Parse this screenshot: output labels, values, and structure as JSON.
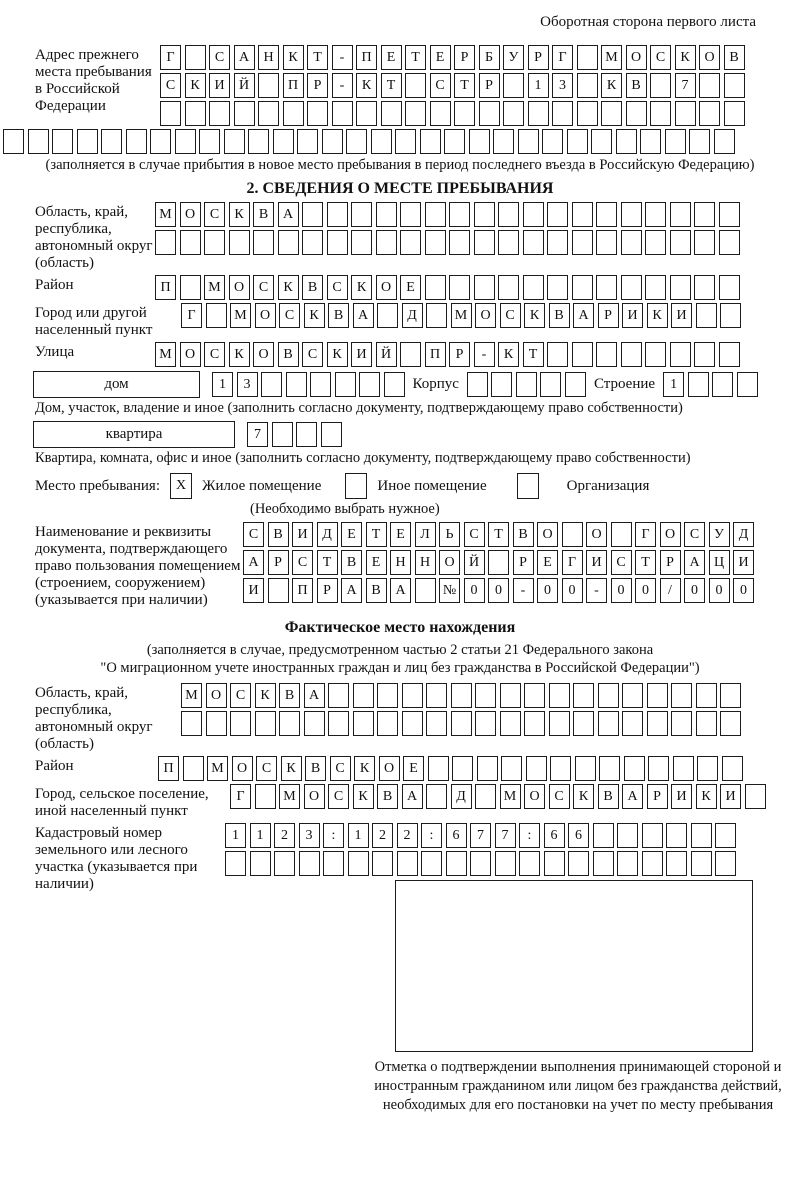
{
  "page_header": "Оборотная сторона первого листа",
  "prev_address": {
    "label": "Адрес прежнего места пребывания в Российской Федерации",
    "rows": [
      "Г САНКТ-ПЕТЕРБУРГ МОСКОВ",
      "СКИЙ ПР-КТ СТР 13 КВ 7  ",
      "                        "
    ],
    "full_row": "                              ",
    "note": "(заполняется в случае прибытия в новое место пребывания в период последнего въезда в Российскую Федерацию)"
  },
  "section2": {
    "title": "2. СВЕДЕНИЯ О МЕСТЕ ПРЕБЫВАНИЯ",
    "region": {
      "label": "Область, край, республика, автономный округ (область)",
      "rows": [
        "МОСКВА                  ",
        "                        "
      ]
    },
    "district": {
      "label": "Район",
      "row": "П МОСКВСКОЕ             "
    },
    "city": {
      "label": "Город или другой населенный пункт",
      "row": "Г МОСКВА Д МОСКВАРИКИ  "
    },
    "street": {
      "label": "Улица",
      "row": "МОСКОВСКИЙ ПР-КТ        "
    },
    "house": {
      "box_label": "дом",
      "cells": "13      ",
      "korpus_label": "Корпус",
      "korpus_cells": "     ",
      "stroenie_label": "Строение",
      "stroenie_cells": "1   "
    },
    "house_note": "Дом, участок, владение и иное (заполнить согласно документу, подтверждающему право собственности)",
    "apartment": {
      "box_label": "квартира",
      "cells": "7   "
    },
    "apartment_note": "Квартира, комната, офис и иное (заполнить согласно документу, подтверждающему право собственности)",
    "stay_type": {
      "label": "Место пребывания:",
      "options": [
        {
          "label": "Жилое помещение",
          "checked": "X"
        },
        {
          "label": "Иное помещение",
          "checked": ""
        },
        {
          "label": "Организация",
          "checked": ""
        }
      ],
      "note": "(Необходимо выбрать нужное)"
    },
    "doc": {
      "label": "Наименование и реквизиты документа, подтверждающего право пользования помещением (строением, сооружением) (указывается при наличии)",
      "rows": [
        "СВИДЕТЕЛЬСТВО О ГОСУД",
        "АРСТВЕННОЙ РЕГИСТРАЦИ",
        "И ПРАВА №00-00-00/000"
      ]
    }
  },
  "actual_location": {
    "title": "Фактическое место нахождения",
    "note_line1": "(заполняется в случае, предусмотренном частью 2 статьи 21 Федерального закона",
    "note_line2": "\"О миграционном учете иностранных граждан и лиц без гражданства в Российской Федерации\")",
    "region": {
      "label": "Область, край, республика, автономный округ (область)",
      "rows": [
        "МОСКВА                 ",
        "                       "
      ]
    },
    "district": {
      "label": "Район",
      "row": "П МОСКВСКОЕ             "
    },
    "city": {
      "label": "Город, сельское поселение, иной населенный пункт",
      "row": "Г МОСКВА Д МОСКВАРИКИ "
    },
    "cadastral": {
      "label": "Кадастровый номер земельного или лесного участка (указывается при наличии)",
      "rows": [
        "1123:122:677:66      ",
        "                     "
      ]
    },
    "stamp_note": "Отметка о подтверждении выполнения принимающей стороной и иностранным гражданином или лицом без гражданства действий, необходимых для его постановки на учет по месту пребывания"
  }
}
